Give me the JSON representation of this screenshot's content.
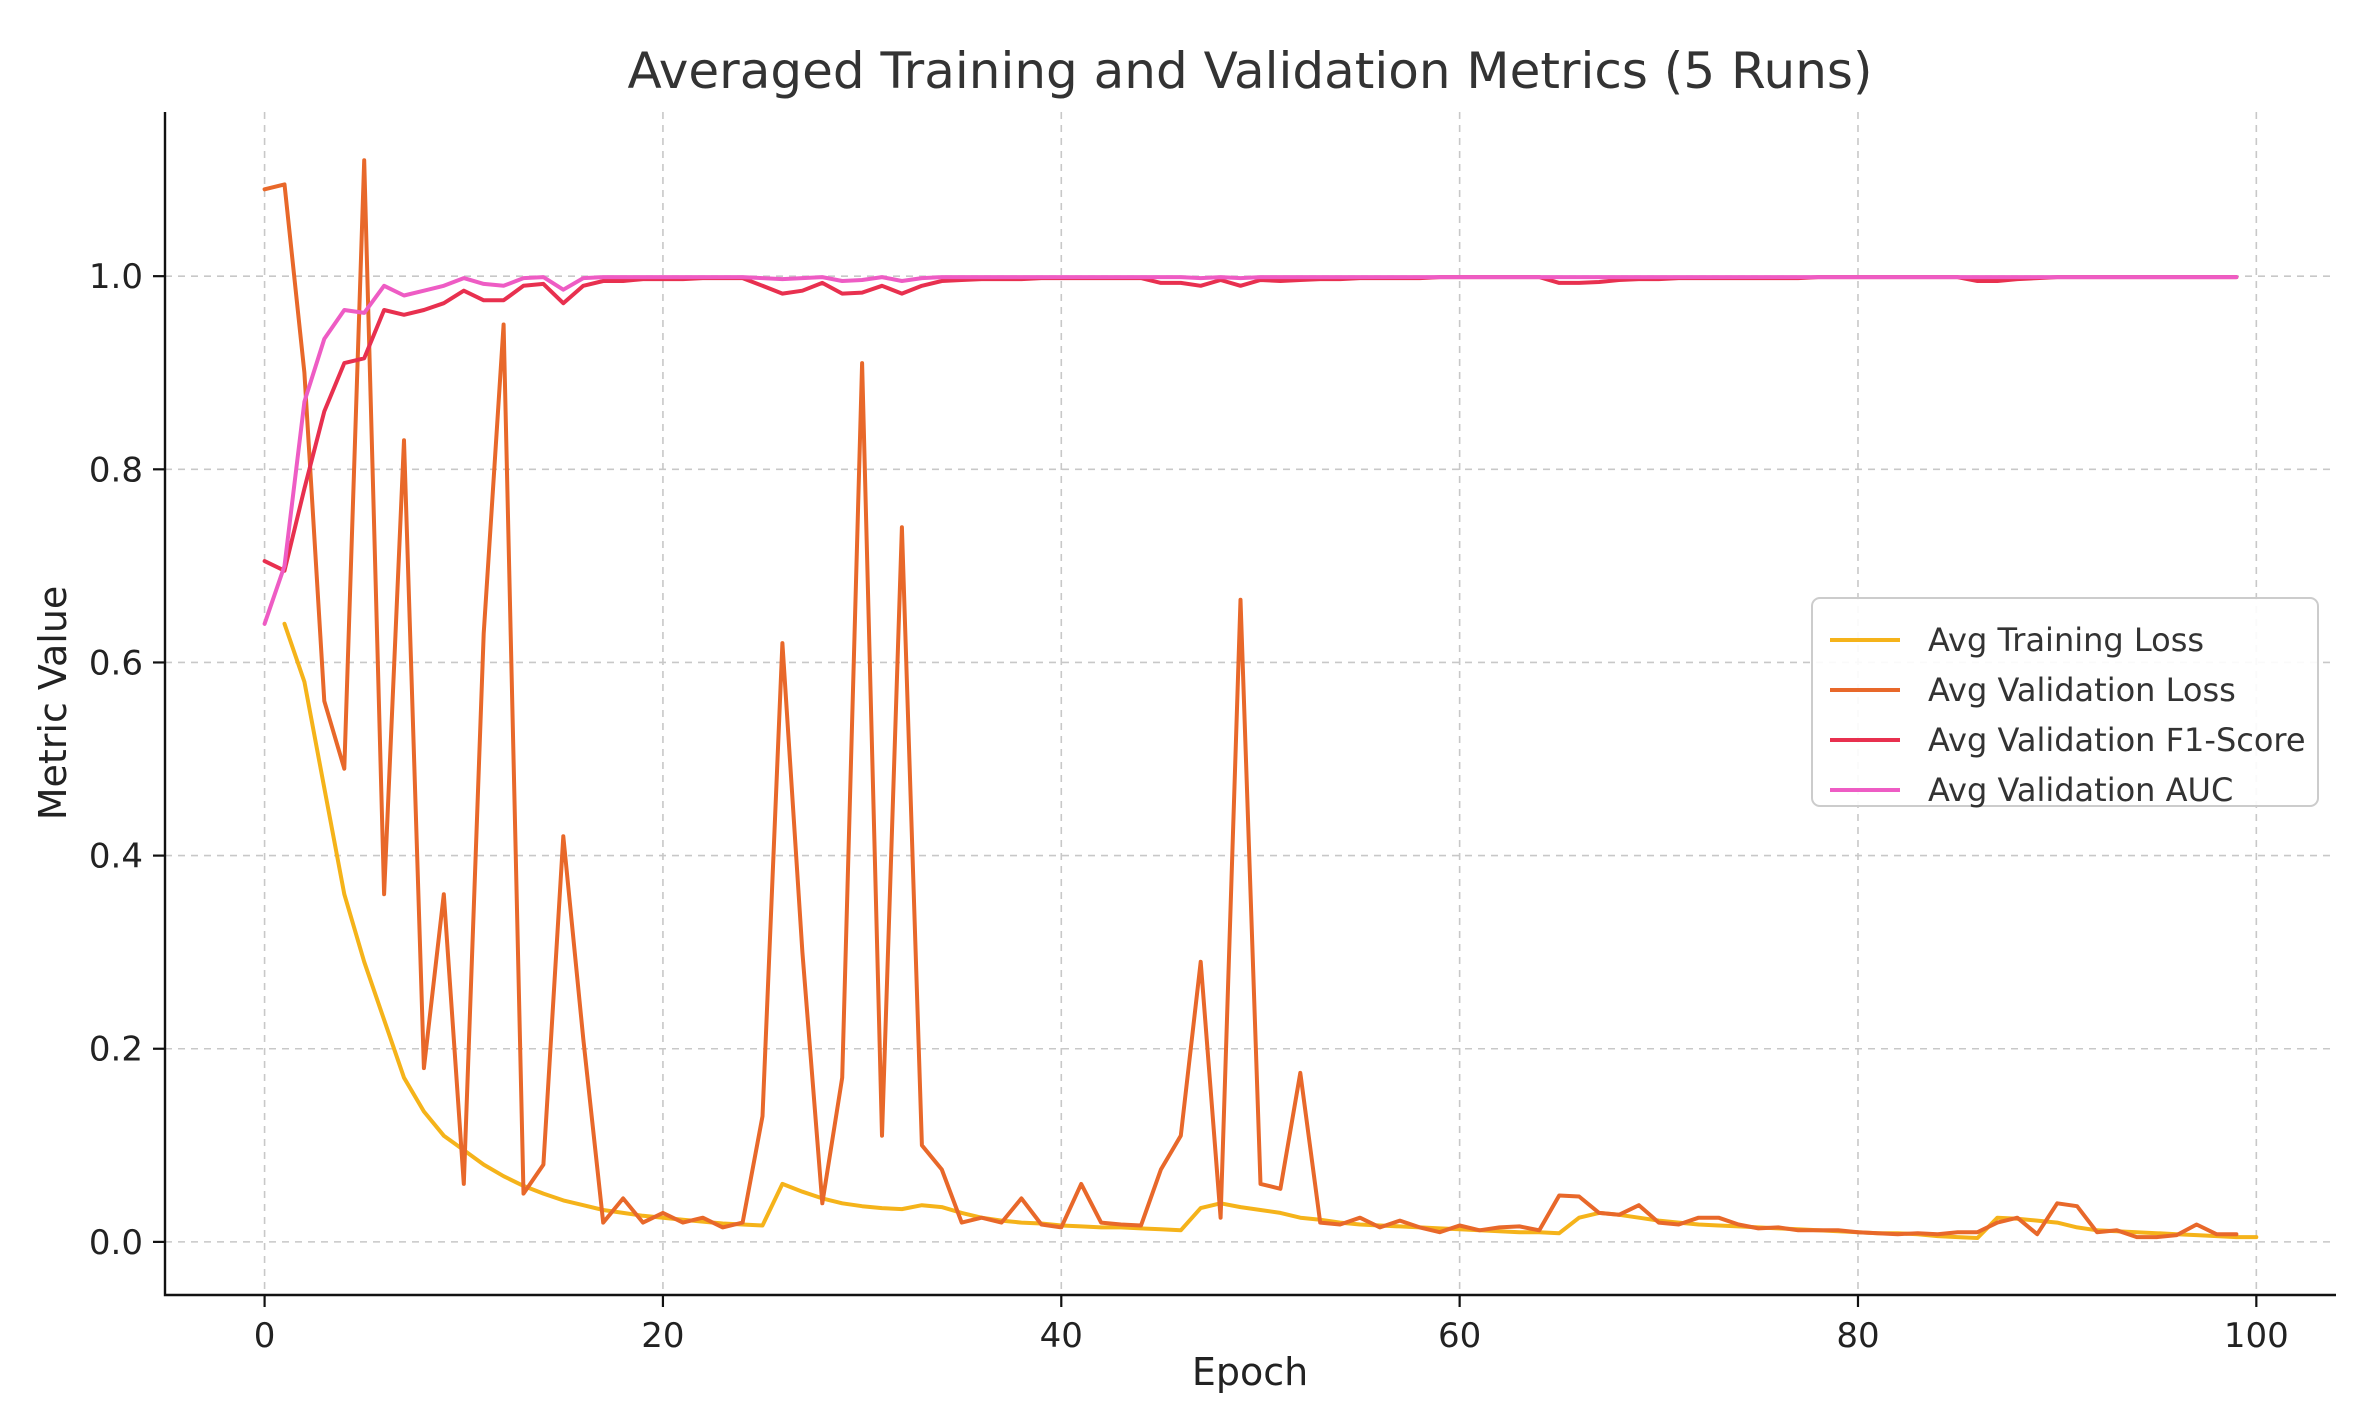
{
  "chart_data": {
    "type": "line",
    "title": "Averaged Training and Validation Metrics (5 Runs)",
    "xlabel": "Epoch",
    "ylabel": "Metric Value",
    "xlim": [
      -5,
      104
    ],
    "ylim": [
      -0.055,
      1.17
    ],
    "xticks": [
      0,
      20,
      40,
      60,
      80,
      100
    ],
    "xtick_labels": [
      "0",
      "20",
      "40",
      "60",
      "80",
      "100"
    ],
    "yticks": [
      0.0,
      0.2,
      0.4,
      0.6,
      0.8,
      1.0
    ],
    "ytick_labels": [
      "0.0",
      "0.2",
      "0.4",
      "0.6",
      "0.8",
      "1.0"
    ],
    "grid": true,
    "legend_position": "center-right",
    "series": [
      {
        "name": "Avg Training Loss",
        "color": "#f5b31a",
        "x_start": 1,
        "values": [
          0.64,
          0.58,
          0.47,
          0.36,
          0.29,
          0.23,
          0.17,
          0.135,
          0.11,
          0.095,
          0.08,
          0.068,
          0.058,
          0.05,
          0.043,
          0.038,
          0.033,
          0.03,
          0.027,
          0.025,
          0.023,
          0.021,
          0.019,
          0.018,
          0.017,
          0.06,
          0.052,
          0.045,
          0.04,
          0.037,
          0.035,
          0.034,
          0.038,
          0.036,
          0.03,
          0.025,
          0.022,
          0.02,
          0.019,
          0.017,
          0.016,
          0.015,
          0.015,
          0.014,
          0.013,
          0.012,
          0.035,
          0.04,
          0.036,
          0.033,
          0.03,
          0.025,
          0.023,
          0.02,
          0.018,
          0.017,
          0.016,
          0.015,
          0.014,
          0.013,
          0.012,
          0.011,
          0.01,
          0.01,
          0.009,
          0.025,
          0.03,
          0.028,
          0.025,
          0.022,
          0.02,
          0.018,
          0.017,
          0.016,
          0.015,
          0.014,
          0.013,
          0.012,
          0.011,
          0.01,
          0.009,
          0.009,
          0.008,
          0.006,
          0.005,
          0.004,
          0.025,
          0.024,
          0.022,
          0.02,
          0.015,
          0.012,
          0.011,
          0.01,
          0.009,
          0.008,
          0.007,
          0.006,
          0.005,
          0.005
        ]
      },
      {
        "name": "Avg Validation Loss",
        "color": "#e8682a",
        "x_start": 0,
        "values": [
          1.09,
          1.095,
          0.9,
          0.56,
          0.49,
          1.12,
          0.36,
          0.83,
          0.18,
          0.36,
          0.06,
          0.63,
          0.95,
          0.05,
          0.08,
          0.42,
          0.21,
          0.02,
          0.045,
          0.02,
          0.03,
          0.02,
          0.025,
          0.015,
          0.02,
          0.13,
          0.62,
          0.3,
          0.04,
          0.17,
          0.91,
          0.11,
          0.74,
          0.1,
          0.075,
          0.02,
          0.025,
          0.02,
          0.045,
          0.018,
          0.015,
          0.06,
          0.02,
          0.018,
          0.017,
          0.075,
          0.11,
          0.29,
          0.025,
          0.665,
          0.06,
          0.055,
          0.175,
          0.02,
          0.018,
          0.025,
          0.015,
          0.022,
          0.015,
          0.01,
          0.017,
          0.012,
          0.015,
          0.016,
          0.012,
          0.048,
          0.047,
          0.03,
          0.028,
          0.038,
          0.02,
          0.018,
          0.025,
          0.025,
          0.018,
          0.014,
          0.015,
          0.012,
          0.012,
          0.012,
          0.01,
          0.009,
          0.008,
          0.009,
          0.008,
          0.01,
          0.01,
          0.02,
          0.025,
          0.008,
          0.04,
          0.037,
          0.01,
          0.012,
          0.005,
          0.005,
          0.007,
          0.018,
          0.008,
          0.008
        ]
      },
      {
        "name": "Avg Validation F1-Score",
        "color": "#e8304f",
        "x_start": 0,
        "values": [
          0.705,
          0.695,
          0.78,
          0.86,
          0.91,
          0.915,
          0.965,
          0.96,
          0.965,
          0.972,
          0.985,
          0.975,
          0.975,
          0.99,
          0.992,
          0.972,
          0.99,
          0.995,
          0.995,
          0.997,
          0.997,
          0.997,
          0.998,
          0.998,
          0.998,
          0.99,
          0.982,
          0.985,
          0.993,
          0.982,
          0.983,
          0.99,
          0.982,
          0.99,
          0.995,
          0.996,
          0.997,
          0.997,
          0.997,
          0.998,
          0.998,
          0.998,
          0.998,
          0.998,
          0.998,
          0.993,
          0.993,
          0.99,
          0.996,
          0.99,
          0.996,
          0.995,
          0.996,
          0.997,
          0.997,
          0.998,
          0.998,
          0.998,
          0.998,
          0.999,
          0.999,
          0.999,
          0.999,
          0.999,
          0.999,
          0.993,
          0.993,
          0.994,
          0.996,
          0.997,
          0.997,
          0.998,
          0.998,
          0.998,
          0.998,
          0.998,
          0.998,
          0.998,
          0.999,
          0.999,
          0.999,
          0.999,
          0.999,
          0.999,
          0.999,
          0.999,
          0.995,
          0.995,
          0.997,
          0.998,
          0.999,
          0.999,
          0.999,
          0.999,
          0.999,
          0.999,
          0.999,
          0.999,
          0.999,
          0.999
        ]
      },
      {
        "name": "Avg Validation AUC",
        "color": "#ee5cc4",
        "x_start": 0,
        "values": [
          0.64,
          0.7,
          0.87,
          0.935,
          0.965,
          0.962,
          0.99,
          0.98,
          0.985,
          0.99,
          0.998,
          0.992,
          0.99,
          0.998,
          0.999,
          0.986,
          0.998,
          0.999,
          0.999,
          0.999,
          0.999,
          0.999,
          0.999,
          0.999,
          0.999,
          0.998,
          0.997,
          0.998,
          0.999,
          0.995,
          0.996,
          0.999,
          0.995,
          0.998,
          0.999,
          0.999,
          0.999,
          0.999,
          0.999,
          0.999,
          0.999,
          0.999,
          0.999,
          0.999,
          0.999,
          0.999,
          0.999,
          0.998,
          0.999,
          0.998,
          0.999,
          0.999,
          0.999,
          0.999,
          0.999,
          0.999,
          0.999,
          0.999,
          0.999,
          0.999,
          0.999,
          0.999,
          0.999,
          0.999,
          0.999,
          0.999,
          0.999,
          0.999,
          0.999,
          0.999,
          0.999,
          0.999,
          0.999,
          0.999,
          0.999,
          0.999,
          0.999,
          0.999,
          0.999,
          0.999,
          0.999,
          0.999,
          0.999,
          0.999,
          0.999,
          0.999,
          0.999,
          0.999,
          0.999,
          0.999,
          0.999,
          0.999,
          0.999,
          0.999,
          0.999,
          0.999,
          0.999,
          0.999,
          0.999,
          0.999
        ]
      }
    ]
  }
}
